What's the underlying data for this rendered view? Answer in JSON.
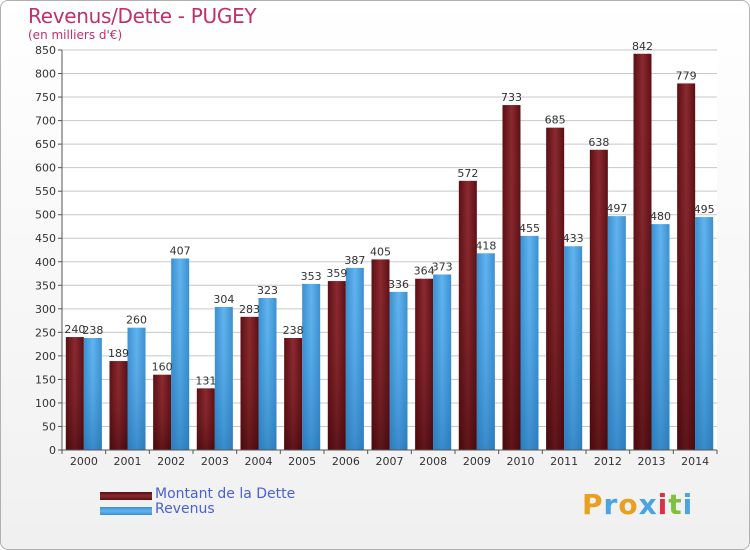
{
  "title": "Revenus/Dette - PUGEY",
  "subtitle": "(en milliers d'€)",
  "legend": [
    {
      "label": "Montant de la Dette",
      "color": "#7a1a1f"
    },
    {
      "label": "Revenus",
      "color": "#4aa3e3"
    }
  ],
  "logo": {
    "letters": [
      "P",
      "r",
      "o",
      "x",
      "i",
      "t",
      "i"
    ],
    "colors": [
      "#e8a020",
      "#4aa3e3",
      "#e8a020",
      "#4aa3e3",
      "#e03040",
      "#80c040",
      "#4aa3e3"
    ]
  },
  "colors": {
    "dette": "#7a1a1f",
    "revenus": "#4aa3e3",
    "title": "#c0306a"
  },
  "chart_data": {
    "type": "bar",
    "title": "Revenus/Dette - PUGEY",
    "subtitle": "(en milliers d'€)",
    "categories": [
      "2000",
      "2001",
      "2002",
      "2003",
      "2004",
      "2005",
      "2006",
      "2007",
      "2008",
      "2009",
      "2010",
      "2011",
      "2012",
      "2013",
      "2014"
    ],
    "series": [
      {
        "name": "Montant de la Dette",
        "values": [
          240,
          189,
          160,
          131,
          283,
          238,
          359,
          405,
          364,
          572,
          733,
          685,
          638,
          842,
          779
        ]
      },
      {
        "name": "Revenus",
        "values": [
          238,
          260,
          407,
          304,
          323,
          353,
          387,
          336,
          373,
          418,
          455,
          433,
          497,
          480,
          495
        ]
      }
    ],
    "ylim": [
      0,
      850
    ],
    "yticks": [
      0,
      50,
      100,
      150,
      200,
      250,
      300,
      350,
      400,
      450,
      500,
      550,
      600,
      650,
      700,
      750,
      800,
      850
    ],
    "grid": true,
    "legend_position": "bottom-left"
  }
}
